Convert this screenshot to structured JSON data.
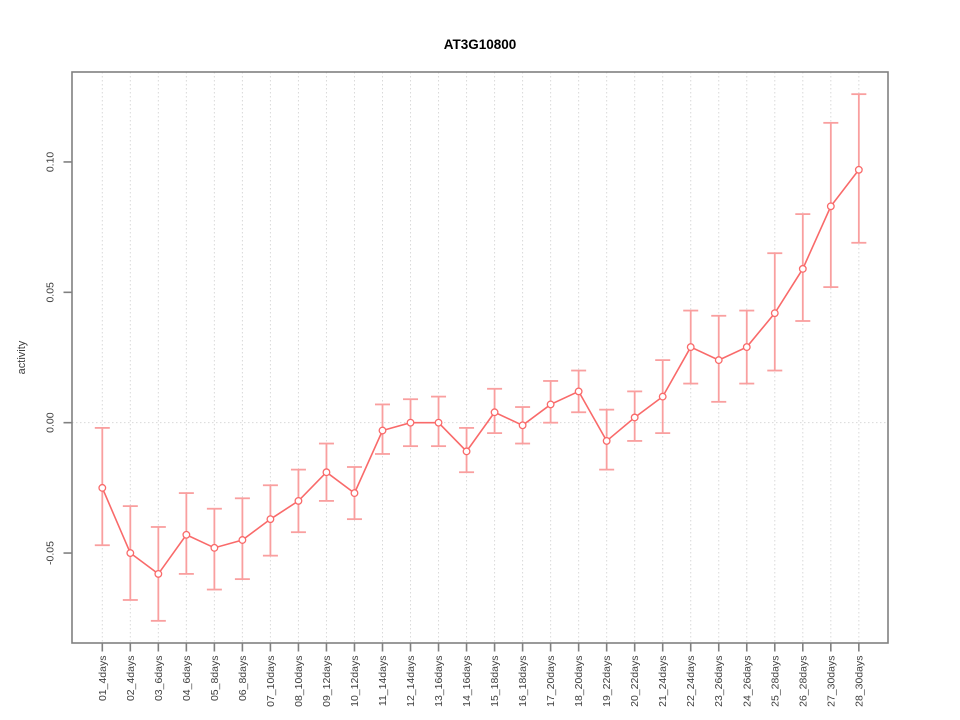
{
  "chart_data": {
    "type": "line",
    "title": "AT3G10800",
    "ylabel": "activity",
    "xlabel": "",
    "categories": [
      "01_4days",
      "02_4days",
      "03_6days",
      "04_6days",
      "05_8days",
      "06_8days",
      "07_10days",
      "08_10days",
      "09_12days",
      "10_12days",
      "11_14days",
      "12_14days",
      "13_16days",
      "14_16days",
      "15_18days",
      "16_18days",
      "17_20days",
      "18_20days",
      "19_22days",
      "20_22days",
      "21_24days",
      "22_24days",
      "23_26days",
      "24_26days",
      "25_28days",
      "26_28days",
      "27_30days",
      "28_30days"
    ],
    "series": [
      {
        "name": "activity",
        "values": [
          -0.025,
          -0.05,
          -0.058,
          -0.043,
          -0.048,
          -0.045,
          -0.037,
          -0.03,
          -0.019,
          -0.027,
          -0.003,
          0.0,
          0.0,
          -0.011,
          0.004,
          -0.001,
          0.007,
          0.012,
          -0.007,
          0.002,
          0.01,
          0.029,
          0.024,
          0.029,
          0.042,
          0.059,
          0.083,
          0.097
        ],
        "err_low": [
          -0.047,
          -0.068,
          -0.076,
          -0.058,
          -0.064,
          -0.06,
          -0.051,
          -0.042,
          -0.03,
          -0.037,
          -0.012,
          -0.009,
          -0.009,
          -0.019,
          -0.004,
          -0.008,
          0.0,
          0.004,
          -0.018,
          -0.007,
          -0.004,
          0.015,
          0.008,
          0.015,
          0.02,
          0.039,
          0.052,
          0.069
        ],
        "err_high": [
          -0.002,
          -0.032,
          -0.04,
          -0.027,
          -0.033,
          -0.029,
          -0.024,
          -0.018,
          -0.008,
          -0.017,
          0.007,
          0.009,
          0.01,
          -0.002,
          0.013,
          0.006,
          0.016,
          0.02,
          0.005,
          0.012,
          0.024,
          0.043,
          0.041,
          0.043,
          0.065,
          0.08,
          0.115,
          0.126
        ]
      }
    ],
    "yticks": [
      -0.05,
      0.0,
      0.05,
      0.1
    ],
    "ytick_labels": [
      "-0.05",
      "0.00",
      "0.05",
      "0.10"
    ],
    "ylim": [
      -0.0845,
      0.1345
    ],
    "grid": {
      "vertical": "dotted line at each category",
      "horizontal": "dotted line at y=0 only"
    },
    "legend_position": "none",
    "point_style": "open-circle",
    "colors": {
      "line": "#f96a6a",
      "error_bar": "#f99f9f",
      "point_fill": "#ffffff",
      "grid": "#d9d9d9",
      "axis": "#808080",
      "tick_text": "#404040",
      "title_text": "#000000"
    }
  }
}
